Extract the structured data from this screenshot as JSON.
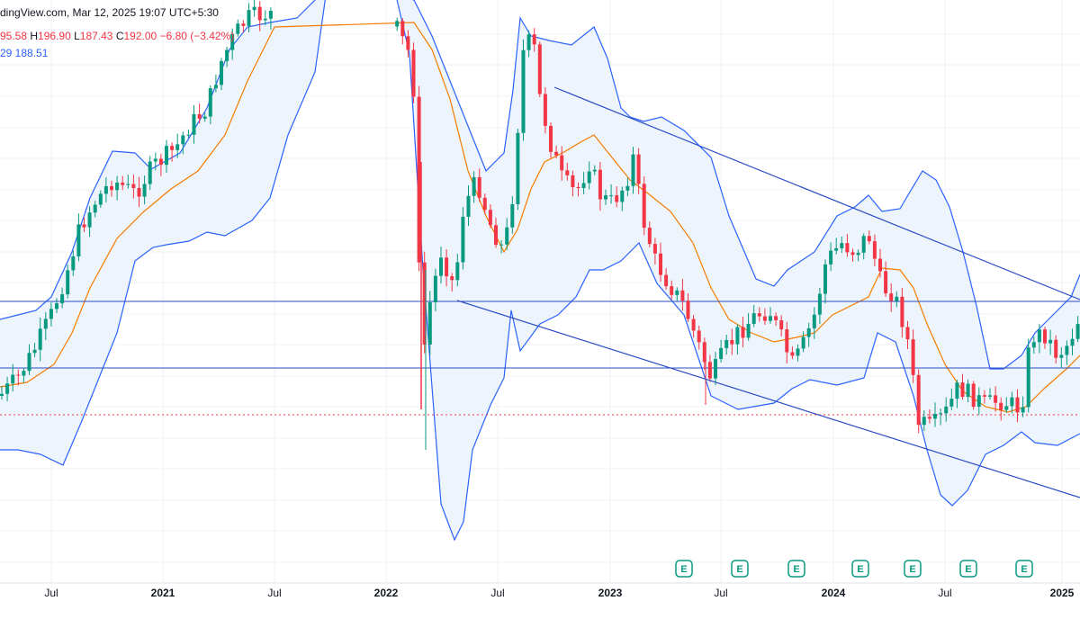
{
  "header": {
    "source_line": "dingView.com, Mar 12, 2025 19:07 UTC+5:30",
    "ohlc": {
      "o_value": "95.58",
      "h_label": "H",
      "h_value": "196.90",
      "l_label": "L",
      "l_value": "187.43",
      "c_label": "C",
      "c_value": "192.00",
      "change": "−6.80 (−3.42%)"
    },
    "indicator_line": "29  188.51"
  },
  "colors": {
    "up": "#089981",
    "down": "#f23645",
    "band_line": "#2962ff",
    "band_fill": "#eef4fb",
    "basis": "#f57c00",
    "trendline": "#2a4bc4",
    "hline": "#2a4bc4",
    "price_line": "#f23645",
    "grid": "#eef0f3"
  },
  "chart_data": {
    "type": "candlestick",
    "x_ticks": [
      "Jul",
      "2021",
      "Jul",
      "2022",
      "Jul",
      "2023",
      "Jul",
      "2024",
      "Jul",
      "2025"
    ],
    "bold_ticks": [
      "2021",
      "2022",
      "2023",
      "2024",
      "2025"
    ],
    "earnings_markers": [
      "E",
      "E",
      "E",
      "E",
      "E",
      "E",
      "E"
    ],
    "legend": "none",
    "grid": true
  }
}
